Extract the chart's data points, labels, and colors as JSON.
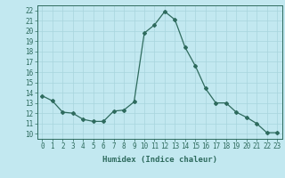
{
  "x": [
    0,
    1,
    2,
    3,
    4,
    5,
    6,
    7,
    8,
    9,
    10,
    11,
    12,
    13,
    14,
    15,
    16,
    17,
    18,
    19,
    20,
    21,
    22,
    23
  ],
  "y": [
    13.7,
    13.2,
    12.1,
    12.0,
    11.4,
    11.2,
    11.2,
    12.2,
    12.3,
    13.1,
    19.8,
    20.6,
    21.9,
    21.1,
    18.4,
    16.6,
    14.4,
    13.0,
    13.0,
    12.1,
    11.6,
    11.0,
    10.1,
    10.1
  ],
  "line_color": "#2e6b5e",
  "marker": "D",
  "marker_size": 2,
  "bg_color": "#c2e8f0",
  "grid_color": "#a8d4dd",
  "xlabel": "Humidex (Indice chaleur)",
  "ylabel_ticks": [
    10,
    11,
    12,
    13,
    14,
    15,
    16,
    17,
    18,
    19,
    20,
    21,
    22
  ],
  "ylim": [
    9.5,
    22.5
  ],
  "xlim": [
    -0.5,
    23.5
  ],
  "xticks": [
    0,
    1,
    2,
    3,
    4,
    5,
    6,
    7,
    8,
    9,
    10,
    11,
    12,
    13,
    14,
    15,
    16,
    17,
    18,
    19,
    20,
    21,
    22,
    23
  ],
  "axis_color": "#2e6b5e",
  "tick_fontsize": 5.5,
  "xlabel_fontsize": 6.5,
  "linewidth": 0.9
}
